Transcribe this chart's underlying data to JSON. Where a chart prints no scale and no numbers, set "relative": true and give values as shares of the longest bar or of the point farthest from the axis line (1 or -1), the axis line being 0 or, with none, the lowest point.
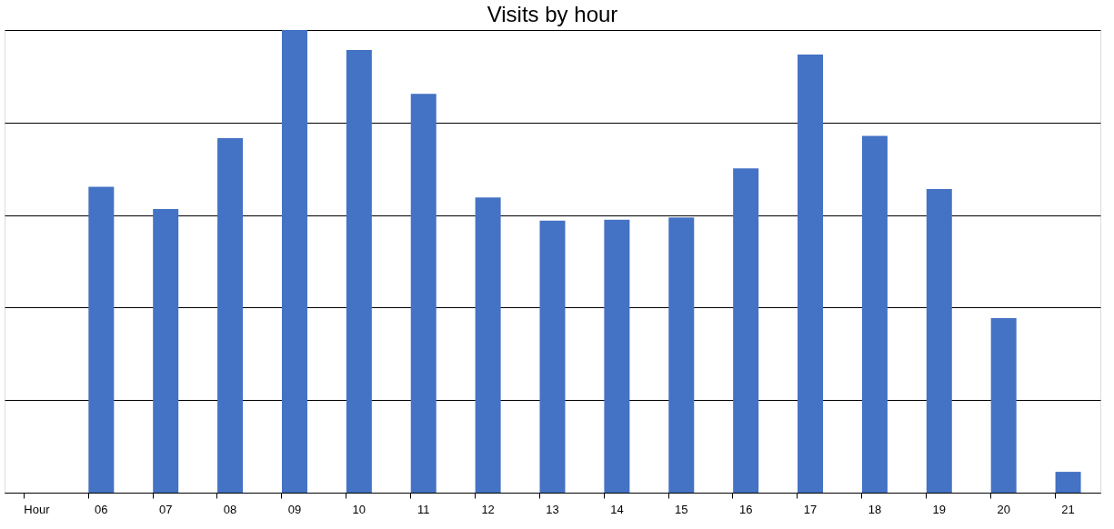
{
  "chart_data": {
    "type": "bar",
    "title": "Visits by hour",
    "relative": true,
    "grid": "y",
    "categories": [
      "Hour",
      "06",
      "07",
      "08",
      "09",
      "10",
      "11",
      "12",
      "13",
      "14",
      "15",
      "16",
      "17",
      "18",
      "19",
      "20",
      "21"
    ],
    "values": [
      null,
      0.661,
      0.613,
      0.766,
      1,
      0.957,
      0.862,
      0.638,
      0.588,
      0.59,
      0.595,
      0.701,
      0.947,
      0.771,
      0.656,
      0.377,
      0.045
    ],
    "color": "#4472c4"
  }
}
